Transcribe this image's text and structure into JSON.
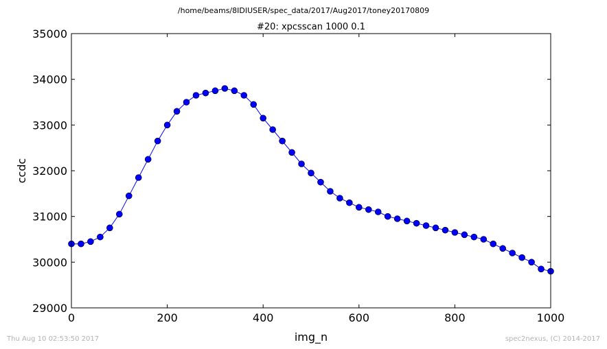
{
  "figure": {
    "suptitle": "/home/beams/8IDIUSER/spec_data/2017/Aug2017/toney20170809",
    "footer_left": "Thu Aug 10 02:53:50 2017",
    "footer_right": "spec2nexus, (C) 2014-2017"
  },
  "chart_data": {
    "type": "line",
    "title": "#20: xpcsscan 1000 0.1",
    "xlabel": "img_n",
    "ylabel": "ccdc",
    "xlim": [
      0,
      1000
    ],
    "ylim": [
      29000,
      35000
    ],
    "xticks": [
      0,
      200,
      400,
      600,
      800,
      1000
    ],
    "yticks": [
      29000,
      30000,
      31000,
      32000,
      33000,
      34000,
      35000
    ],
    "grid": false,
    "legend": "none",
    "marker": "circle",
    "color": "#0000ff",
    "series": [
      {
        "x": [
          0,
          20,
          40,
          60,
          80,
          100,
          120,
          140,
          160,
          180,
          200,
          220,
          240,
          260,
          280,
          300,
          320,
          340,
          360,
          380,
          400,
          420,
          440,
          460,
          480,
          500,
          520,
          540,
          560,
          580,
          600,
          620,
          640,
          660,
          680,
          700,
          720,
          740,
          760,
          780,
          800,
          820,
          840,
          860,
          880,
          900,
          920,
          940,
          960,
          980,
          1000
        ],
        "values": [
          30400,
          30400,
          30450,
          30550,
          30750,
          31050,
          31450,
          31850,
          32250,
          32650,
          33000,
          33300,
          33500,
          33650,
          33700,
          33750,
          33800,
          33750,
          33650,
          33450,
          33150,
          32900,
          32650,
          32400,
          32150,
          31950,
          31750,
          31550,
          31400,
          31300,
          31200,
          31150,
          31100,
          31000,
          30950,
          30900,
          30850,
          30800,
          30750,
          30700,
          30650,
          30600,
          30550,
          30500,
          30400,
          30300,
          30200,
          30100,
          30000,
          29850,
          29800
        ]
      }
    ]
  }
}
